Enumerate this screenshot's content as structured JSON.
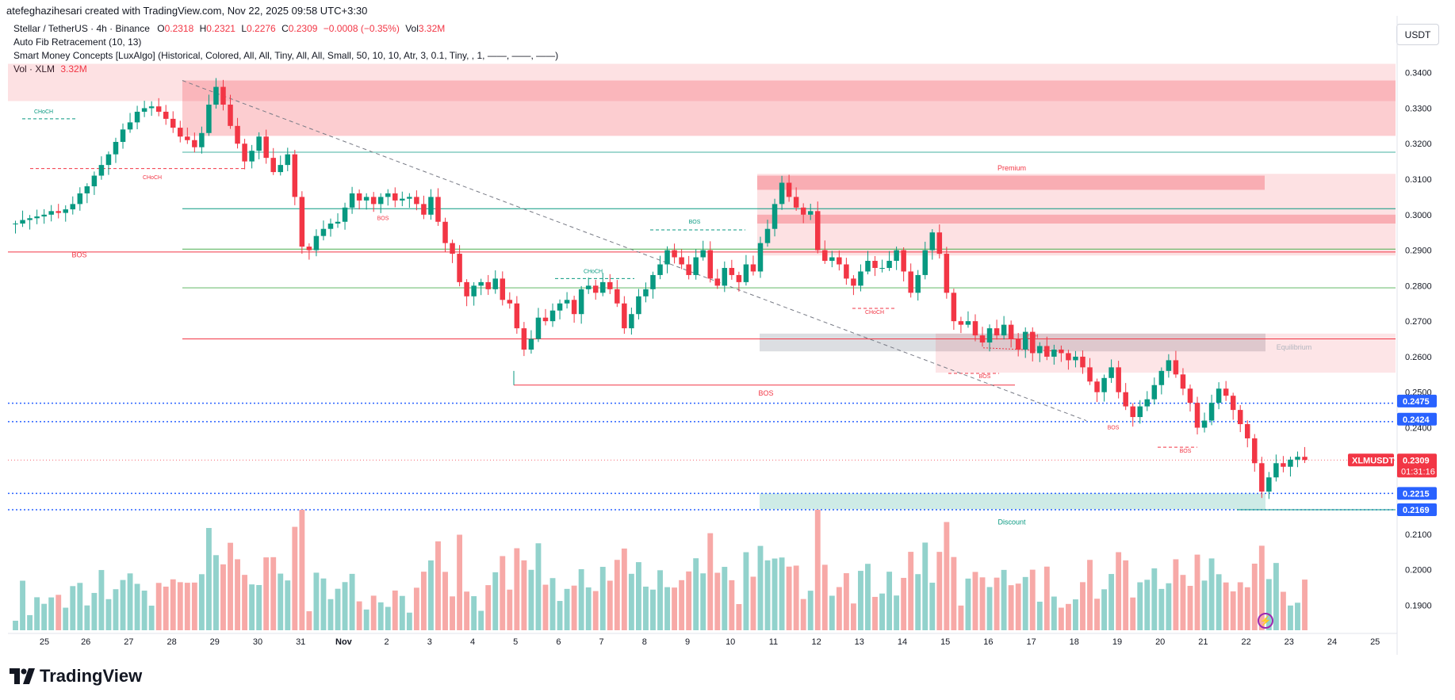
{
  "header": {
    "created_by": "atefeghazihesari created with TradingView.com, Nov 22, 2025 09:58 UTC+3:30",
    "symbol_line": "Stellar / TetherUS · 4h · Binance",
    "ohlc": {
      "o_label": "O",
      "o": "0.2318",
      "h_label": "H",
      "h": "0.2321",
      "l_label": "L",
      "l": "0.2276",
      "c_label": "C",
      "c": "0.2309",
      "change": "−0.0008 (−0.35%)",
      "vol_label": "Vol",
      "vol": "3.32M"
    },
    "indicator_1": "Auto Fib Retracement (10, 13)",
    "indicator_2": "Smart Money Concepts [LuxAlgo] (Historical, Colored, All, All, Tiny, All, All, Small, 50, 10, 10, Atr, 3, 0.1, Tiny, , 1, ——, ——, ——)",
    "indicator_3_label": "Vol · XLM",
    "indicator_3_value": "3.32M"
  },
  "currency_button": "USDT",
  "brand": "TradingView",
  "colors": {
    "up": "#089981",
    "down": "#f23645",
    "up_vol": "#92d2cc",
    "down_vol": "#f7a9a7",
    "premium": "#f23645",
    "discount": "#089981",
    "blue": "#2962ff"
  },
  "chart_data": {
    "type": "candlestick",
    "price_axis_ticks": [
      "0.3400",
      "0.3300",
      "0.3200",
      "0.3100",
      "0.3000",
      "0.2900",
      "0.2800",
      "0.2700",
      "0.2600",
      "0.2500",
      "0.2400",
      "0.2100",
      "0.2000",
      "0.1900"
    ],
    "price_axis_tick_values": [
      0.34,
      0.33,
      0.32,
      0.31,
      0.3,
      0.29,
      0.28,
      0.27,
      0.26,
      0.25,
      0.24,
      0.21,
      0.2,
      0.19
    ],
    "price_range": [
      0.1825,
      0.3435
    ],
    "time_axis_labels": [
      "25",
      "26",
      "27",
      "28",
      "29",
      "30",
      "31",
      "Nov",
      "2",
      "3",
      "4",
      "5",
      "6",
      "7",
      "8",
      "9",
      "10",
      "11",
      "12",
      "13",
      "14",
      "15",
      "16",
      "17",
      "18",
      "19",
      "20",
      "21",
      "22",
      "23",
      "24",
      "25"
    ],
    "time_axis_days": [
      0,
      1,
      2,
      3,
      4,
      5,
      6,
      7,
      8,
      9,
      10,
      11,
      12,
      13,
      14,
      15,
      16,
      17,
      18,
      19,
      20,
      21,
      22,
      23,
      24,
      25,
      26,
      27,
      28,
      29,
      30,
      31
    ],
    "candles_per_day": 6,
    "current_price": {
      "symbol": "XLMUSDT",
      "price": "0.2309",
      "countdown": "01:31:16",
      "value": 0.2309
    },
    "level_labels": [
      {
        "text": "0.2475",
        "value": 0.2475
      },
      {
        "text": "0.2424",
        "value": 0.2424
      },
      {
        "text": "0.2215",
        "value": 0.2215
      },
      {
        "text": "0.2169",
        "value": 0.2169
      }
    ],
    "zone_labels": {
      "premium": "Premium",
      "equilibrium": "Equilibrium",
      "discount": "Discount"
    },
    "structure_labels": [
      "CHoCH",
      "CHoCH",
      "BOS",
      "BOS",
      "CHoCH",
      "BOS",
      "CHoCH",
      "BOS",
      "EQH",
      "BOS",
      "BOS",
      "BOS"
    ],
    "closes": [
      0.2975,
      0.2985,
      0.299,
      0.2995,
      0.3,
      0.301,
      0.3005,
      0.3015,
      0.303,
      0.306,
      0.308,
      0.311,
      0.314,
      0.317,
      0.3205,
      0.324,
      0.326,
      0.329,
      0.33,
      0.3305,
      0.329,
      0.327,
      0.3245,
      0.322,
      0.321,
      0.319,
      0.323,
      0.331,
      0.336,
      0.331,
      0.325,
      0.32,
      0.315,
      0.318,
      0.322,
      0.316,
      0.312,
      0.314,
      0.317,
      0.305,
      0.291,
      0.29,
      0.294,
      0.296,
      0.2975,
      0.298,
      0.302,
      0.306,
      0.304,
      0.305,
      0.303,
      0.305,
      0.306,
      0.304,
      0.3045,
      0.305,
      0.303,
      0.3,
      0.305,
      0.298,
      0.292,
      0.289,
      0.281,
      0.277,
      0.28,
      0.281,
      0.279,
      0.282,
      0.276,
      0.275,
      0.268,
      0.262,
      0.265,
      0.271,
      0.27,
      0.273,
      0.275,
      0.276,
      0.272,
      0.279,
      0.28,
      0.278,
      0.281,
      0.279,
      0.275,
      0.268,
      0.272,
      0.277,
      0.279,
      0.283,
      0.286,
      0.29,
      0.288,
      0.286,
      0.283,
      0.288,
      0.29,
      0.282,
      0.28,
      0.285,
      0.283,
      0.281,
      0.286,
      0.284,
      0.292,
      0.296,
      0.303,
      0.309,
      0.305,
      0.302,
      0.3,
      0.301,
      0.29,
      0.287,
      0.288,
      0.286,
      0.282,
      0.28,
      0.284,
      0.287,
      0.285,
      0.285,
      0.287,
      0.29,
      0.284,
      0.278,
      0.283,
      0.29,
      0.295,
      0.289,
      0.278,
      0.27,
      0.269,
      0.27,
      0.266,
      0.264,
      0.268,
      0.266,
      0.269,
      0.265,
      0.262,
      0.267,
      0.261,
      0.263,
      0.26,
      0.262,
      0.261,
      0.259,
      0.26,
      0.257,
      0.253,
      0.25,
      0.254,
      0.257,
      0.25,
      0.246,
      0.243,
      0.246,
      0.248,
      0.252,
      0.256,
      0.259,
      0.255,
      0.251,
      0.247,
      0.24,
      0.242,
      0.247,
      0.251,
      0.249,
      0.245,
      0.241,
      0.237,
      0.23,
      0.222,
      0.226,
      0.23,
      0.229,
      0.231,
      0.2318,
      0.2309
    ],
    "volume_scale_max": 1
  }
}
